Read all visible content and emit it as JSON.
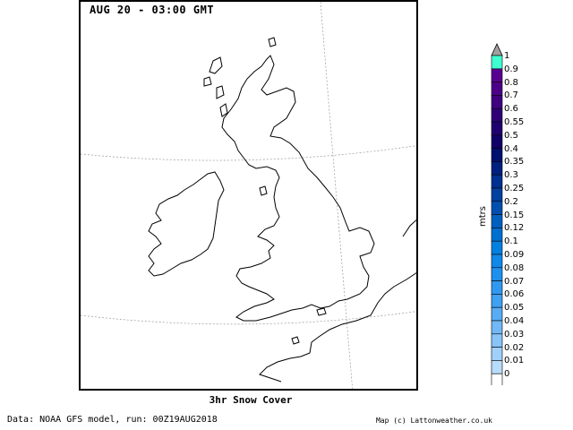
{
  "title": "AUG 20 - 03:00 GMT",
  "caption": "3hr Snow Cover",
  "footer_left": "Data: NOAA GFS model, run: 00Z19AUG2018",
  "footer_right": "Map (c) Lattonweather.co.uk",
  "legend": {
    "unit": "mtrs",
    "levels": [
      {
        "label": "1",
        "color": "#40ffd0"
      },
      {
        "label": "0.9",
        "color": "#5a0090"
      },
      {
        "label": "0.8",
        "color": "#4c0088"
      },
      {
        "label": "0.7",
        "color": "#400080"
      },
      {
        "label": "0.6",
        "color": "#300078"
      },
      {
        "label": "0.55",
        "color": "#200070"
      },
      {
        "label": "0.5",
        "color": "#100068"
      },
      {
        "label": "0.4",
        "color": "#001070"
      },
      {
        "label": "0.35",
        "color": "#002080"
      },
      {
        "label": "0.3",
        "color": "#003090"
      },
      {
        "label": "0.25",
        "color": "#0040a0"
      },
      {
        "label": "0.2",
        "color": "#0050b0"
      },
      {
        "label": "0.15",
        "color": "#0060c0"
      },
      {
        "label": "0.12",
        "color": "#0070d0"
      },
      {
        "label": "0.1",
        "color": "#0080e0"
      },
      {
        "label": "0.09",
        "color": "#1088e8"
      },
      {
        "label": "0.08",
        "color": "#2090ee"
      },
      {
        "label": "0.07",
        "color": "#3098f0"
      },
      {
        "label": "0.06",
        "color": "#40a0f2"
      },
      {
        "label": "0.05",
        "color": "#58acf4"
      },
      {
        "label": "0.04",
        "color": "#70b8f6"
      },
      {
        "label": "0.03",
        "color": "#88c4f8"
      },
      {
        "label": "0.02",
        "color": "#a0d0fa"
      },
      {
        "label": "0.01",
        "color": "#b8dcfc"
      },
      {
        "label": "0",
        "color": "#d8ecff"
      }
    ]
  }
}
